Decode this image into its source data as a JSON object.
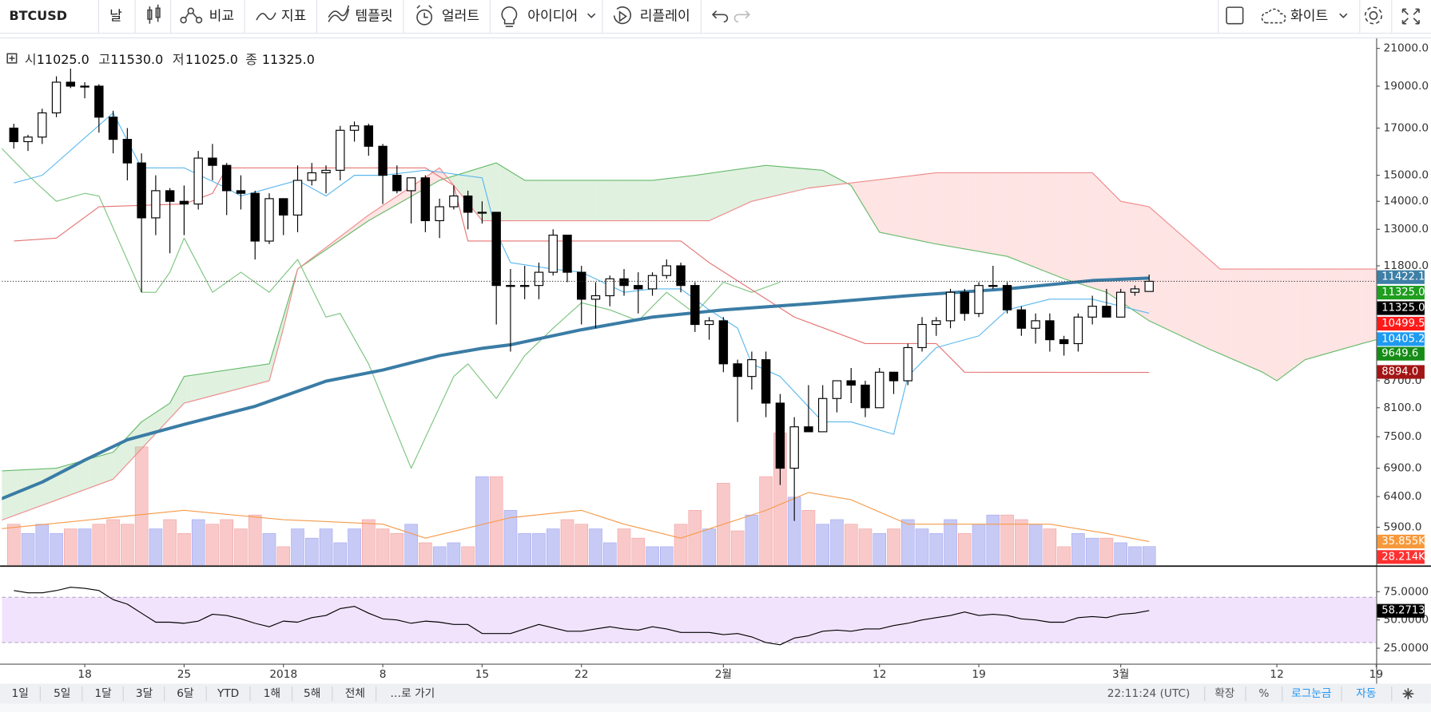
{
  "toolbar": {
    "symbol": "BTCUSD",
    "interval": "날",
    "buttons": [
      "비교",
      "지표",
      "템플릿",
      "얼러트",
      "아이디어",
      "리플레이"
    ],
    "theme": "화이트"
  },
  "legend": [
    {
      "label": "시",
      "value": "11025.0"
    },
    {
      "label": "고",
      "value": "11530.0"
    },
    {
      "label": "저",
      "value": "11025.0"
    },
    {
      "label": "종",
      "value": "11325.0"
    }
  ],
  "price_labels": [
    {
      "text": "11422.1",
      "color": "#3d7fa6"
    },
    {
      "text": "11325.0",
      "color": "#1f9e1f"
    },
    {
      "text": "11325.0",
      "color": "#000000"
    },
    {
      "text": "10499.5",
      "color": "#ff1a1a"
    },
    {
      "text": "10405.2",
      "color": "#1e9bf0"
    },
    {
      "text": "9649.6",
      "color": "#168c16"
    },
    {
      "text": "8894.0",
      "color": "#a31515"
    },
    {
      "text": "35.855K",
      "color": "#f7993a"
    },
    {
      "text": "28.214K",
      "color": "#ff3030"
    },
    {
      "text": "58.2713",
      "color": "#000000"
    }
  ],
  "bottom_bar": {
    "ranges": [
      "1일",
      "5일",
      "1달",
      "3달",
      "6달",
      "YTD",
      "1해",
      "5해",
      "전체"
    ],
    "goto": "…로 가기",
    "time": "22:11:24 (UTC)",
    "options": [
      "확장",
      "%",
      "로그눈금",
      "자동"
    ]
  },
  "chart_data": {
    "type": "candlestick",
    "log_scale": true,
    "up_color": "#ffffff",
    "down_color": "#000000",
    "xlim": [
      -0.84,
      96
    ],
    "xticks": [
      {
        "value": 5,
        "label": "18"
      },
      {
        "value": 12,
        "label": "25"
      },
      {
        "value": 19,
        "label": "2018"
      },
      {
        "value": 26,
        "label": "8"
      },
      {
        "value": 33,
        "label": "15"
      },
      {
        "value": 40,
        "label": "22"
      },
      {
        "value": 50,
        "label": "2월"
      },
      {
        "value": 61,
        "label": "12"
      },
      {
        "value": 68,
        "label": "19"
      },
      {
        "value": 78,
        "label": "3월"
      },
      {
        "value": 89,
        "label": "12"
      },
      {
        "value": 96,
        "label": "19"
      }
    ],
    "ylim": [
      5335,
      21570
    ],
    "yticks": [
      {
        "value": 21000,
        "label": "21000.0"
      },
      {
        "value": 19000,
        "label": "19000.0"
      },
      {
        "value": 17000,
        "label": "17000.0"
      },
      {
        "value": 15000,
        "label": "15000.0"
      },
      {
        "value": 14000,
        "label": "14000.0"
      },
      {
        "value": 13000,
        "label": "13000.0"
      },
      {
        "value": 11800,
        "label": "11800.0"
      },
      {
        "value": 8700,
        "label": "8700.0"
      },
      {
        "value": 8100,
        "label": "8100.0"
      },
      {
        "value": 7500,
        "label": "7500.0"
      },
      {
        "value": 6900,
        "label": "6900.0"
      },
      {
        "value": 6400,
        "label": "6400.0"
      },
      {
        "value": 5900,
        "label": "5900.0"
      }
    ],
    "candles": [
      [
        17000,
        17200,
        16100,
        16400
      ],
      [
        16400,
        16700,
        16000,
        16600
      ],
      [
        16600,
        17900,
        16300,
        17700
      ],
      [
        17700,
        19500,
        17500,
        19200
      ],
      [
        19200,
        19900,
        18900,
        19000
      ],
      [
        19000,
        19200,
        18400,
        19000
      ],
      [
        19000,
        19100,
        16800,
        17500
      ],
      [
        17500,
        17800,
        15900,
        16500
      ],
      [
        16500,
        17000,
        14800,
        15500
      ],
      [
        15500,
        15900,
        11000,
        13400
      ],
      [
        13400,
        15000,
        12800,
        14400
      ],
      [
        14400,
        14500,
        12200,
        14000
      ],
      [
        14000,
        14600,
        12800,
        13900
      ],
      [
        13900,
        16000,
        13700,
        15700
      ],
      [
        15700,
        16300,
        14800,
        15400
      ],
      [
        15400,
        15500,
        13500,
        14400
      ],
      [
        14400,
        15000,
        13700,
        14300
      ],
      [
        14300,
        14400,
        12000,
        12600
      ],
      [
        12600,
        14300,
        12500,
        14100
      ],
      [
        14100,
        14100,
        12800,
        13500
      ],
      [
        13500,
        15400,
        12900,
        14800
      ],
      [
        14800,
        15500,
        14600,
        15100
      ],
      [
        15100,
        15400,
        14300,
        15200
      ],
      [
        15200,
        17100,
        14800,
        16900
      ],
      [
        16900,
        17300,
        16400,
        17100
      ],
      [
        17100,
        17200,
        15800,
        16200
      ],
      [
        16200,
        16300,
        13900,
        15000
      ],
      [
        15000,
        15400,
        14300,
        14400
      ],
      [
        14400,
        14900,
        13200,
        14900
      ],
      [
        14900,
        15000,
        12900,
        13300
      ],
      [
        13300,
        14100,
        12700,
        13800
      ],
      [
        13800,
        14600,
        13700,
        14200
      ],
      [
        14200,
        14400,
        13000,
        13600
      ],
      [
        13600,
        14000,
        13200,
        13600
      ],
      [
        13600,
        13600,
        10100,
        11200
      ],
      [
        11200,
        11700,
        9400,
        11200
      ],
      [
        11200,
        11800,
        10800,
        11200
      ],
      [
        11200,
        11900,
        10800,
        11600
      ],
      [
        11600,
        13000,
        11500,
        12800
      ],
      [
        12800,
        12800,
        11300,
        11600
      ],
      [
        11600,
        11800,
        10100,
        10800
      ],
      [
        10800,
        11300,
        10000,
        10900
      ],
      [
        10900,
        11500,
        10600,
        11400
      ],
      [
        11400,
        11700,
        10900,
        11200
      ],
      [
        11200,
        11600,
        10400,
        11100
      ],
      [
        11100,
        11600,
        10900,
        11500
      ],
      [
        11500,
        12000,
        11400,
        11800
      ],
      [
        11800,
        11900,
        11000,
        11200
      ],
      [
        11200,
        11300,
        9900,
        10100
      ],
      [
        10100,
        10300,
        9700,
        10200
      ],
      [
        10200,
        10300,
        8900,
        9100
      ],
      [
        9100,
        9200,
        7800,
        8800
      ],
      [
        8800,
        9400,
        8500,
        9200
      ],
      [
        9200,
        9400,
        7900,
        8200
      ],
      [
        8200,
        8400,
        6600,
        6900
      ],
      [
        6900,
        7900,
        6000,
        7700
      ],
      [
        7700,
        8600,
        7600,
        7600
      ],
      [
        7600,
        8600,
        7600,
        8300
      ],
      [
        8300,
        8700,
        8000,
        8700
      ],
      [
        8700,
        9000,
        8200,
        8600
      ],
      [
        8600,
        8700,
        7900,
        8100
      ],
      [
        8100,
        9000,
        8100,
        8900
      ],
      [
        8900,
        8900,
        8400,
        8700
      ],
      [
        8700,
        9600,
        8600,
        9500
      ],
      [
        9500,
        10300,
        9400,
        10100
      ],
      [
        10100,
        10300,
        9800,
        10200
      ],
      [
        10200,
        11100,
        10000,
        11000
      ],
      [
        11000,
        11100,
        10200,
        10400
      ],
      [
        10400,
        11300,
        10300,
        11200
      ],
      [
        11200,
        11800,
        11100,
        11200
      ],
      [
        11200,
        11300,
        10400,
        10500
      ],
      [
        10500,
        10600,
        9800,
        10000
      ],
      [
        10000,
        10400,
        9600,
        10200
      ],
      [
        10200,
        10400,
        9400,
        9700
      ],
      [
        9700,
        9800,
        9300,
        9600
      ],
      [
        9600,
        10400,
        9400,
        10300
      ],
      [
        10300,
        10900,
        10100,
        10600
      ],
      [
        10600,
        11100,
        10300,
        10300
      ],
      [
        10300,
        11100,
        10300,
        11000
      ],
      [
        11000,
        11200,
        10900,
        11100
      ],
      [
        11025,
        11530,
        11025,
        11325
      ]
    ],
    "lines": {
      "ma": {
        "color": "#3a7ca5",
        "width": 3.5,
        "x": [
          -1,
          2,
          5,
          8,
          12,
          17,
          22,
          26,
          30,
          33,
          35,
          40,
          45,
          50,
          57,
          63,
          70,
          76,
          80
        ],
        "values": [
          6350,
          6650,
          7050,
          7440,
          7750,
          8130,
          8690,
          8950,
          9300,
          9480,
          9570,
          9960,
          10300,
          10500,
          10700,
          10900,
          11100,
          11350,
          11422.1
        ]
      },
      "tenkan": {
        "color": "#5ab8ee",
        "width": 1,
        "x": [
          0,
          2,
          7,
          9,
          12,
          15,
          16,
          20,
          22,
          24,
          26,
          29,
          33,
          34,
          35,
          38,
          40,
          43,
          45,
          47,
          49,
          51,
          52,
          54,
          57,
          59,
          62,
          63,
          65,
          68,
          70,
          73,
          76,
          80
        ],
        "values": [
          14700,
          15000,
          17700,
          15300,
          15300,
          14500,
          14200,
          14800,
          14200,
          15000,
          15000,
          15200,
          14900,
          12900,
          11900,
          11700,
          11600,
          11000,
          11100,
          11100,
          10500,
          10000,
          9100,
          8800,
          7800,
          7800,
          7550,
          8800,
          9500,
          9800,
          10500,
          10800,
          10800,
          10405.2
        ]
      },
      "kijun": {
        "color": "#e57373",
        "width": 1,
        "x": [
          0,
          3,
          6,
          12,
          14,
          15,
          29,
          31,
          32,
          47,
          49,
          55,
          60,
          65,
          67,
          80
        ],
        "values": [
          12600,
          12700,
          13800,
          13900,
          14300,
          15300,
          15300,
          14600,
          12600,
          12600,
          11900,
          10300,
          9600,
          9600,
          8900,
          8894
        ]
      },
      "span_a": {
        "color": "#66bb6a",
        "width": 1,
        "x": [
          -1,
          3,
          7,
          9,
          11,
          12,
          18,
          20,
          25,
          30,
          34,
          36,
          40,
          45,
          48,
          53,
          57,
          59,
          61,
          65,
          70,
          74,
          77,
          80,
          84,
          88,
          89,
          91,
          95,
          96
        ],
        "values": [
          6850,
          6900,
          7200,
          7800,
          8200,
          8800,
          9100,
          11700,
          13300,
          14800,
          15500,
          14800,
          14800,
          14800,
          15000,
          15400,
          15200,
          14600,
          12900,
          12500,
          12100,
          11400,
          11000,
          10200,
          9500,
          8900,
          8700,
          9200,
          9600,
          9700
        ]
      },
      "span_b": {
        "color": "#ef8a8a",
        "width": 1,
        "x": [
          -1,
          7,
          12,
          18,
          19,
          20,
          25,
          30,
          33,
          49,
          52,
          56,
          59,
          65,
          76,
          78,
          80,
          83,
          85,
          96
        ],
        "values": [
          6000,
          6700,
          8200,
          8700,
          10000,
          11700,
          13500,
          15300,
          13300,
          13300,
          14000,
          14500,
          14700,
          15100,
          15100,
          14000,
          13800,
          12500,
          11700,
          11700
        ]
      },
      "chikou": {
        "color": "#7cc47f",
        "width": 1,
        "x": [
          -1,
          1,
          3,
          5,
          6,
          9,
          10,
          11,
          12,
          14,
          16,
          18,
          20,
          22,
          23,
          25,
          28,
          31,
          32,
          34,
          36,
          38,
          40,
          42,
          44,
          46,
          48,
          50,
          52,
          54
        ],
        "values": [
          16200,
          15000,
          14000,
          14300,
          14200,
          11000,
          11000,
          11600,
          12700,
          11000,
          11600,
          11000,
          12000,
          10300,
          10400,
          9100,
          6900,
          8800,
          9100,
          8300,
          9300,
          10000,
          10700,
          10500,
          10200,
          11000,
          10400,
          11300,
          11000,
          11300
        ]
      }
    },
    "volume": {
      "ylim": [
        0,
        797000
      ],
      "up_color": "#b9bdf3",
      "down_color": "#f7bcbc",
      "ma_color": "#f59a4a",
      "values": [
        62000,
        48000,
        62000,
        48000,
        55000,
        55000,
        62000,
        69000,
        62000,
        179000,
        55000,
        69000,
        48000,
        69000,
        62000,
        69000,
        55000,
        76000,
        48000,
        28000,
        55000,
        41000,
        55000,
        34000,
        55000,
        69000,
        55000,
        48000,
        62000,
        34000,
        28000,
        34000,
        28000,
        134000,
        134000,
        83000,
        48000,
        48000,
        55000,
        69000,
        62000,
        55000,
        34000,
        55000,
        41000,
        28000,
        28000,
        62000,
        83000,
        55000,
        124000,
        52000,
        76000,
        134000,
        200000,
        103000,
        83000,
        62000,
        69000,
        62000,
        55000,
        48000,
        55000,
        69000,
        55000,
        48000,
        69000,
        48000,
        62000,
        76000,
        76000,
        69000,
        62000,
        55000,
        28000,
        48000,
        41000,
        41000,
        34000,
        28000,
        28214
      ],
      "ma": {
        "x": [
          -1,
          12,
          19,
          26,
          29,
          35,
          40,
          43,
          47,
          53,
          56,
          59,
          63,
          69,
          73,
          77,
          80
        ],
        "values": [
          55000,
          83000,
          69000,
          62000,
          41000,
          72000,
          83000,
          62000,
          41000,
          83000,
          110000,
          99000,
          62000,
          62000,
          62000,
          48000,
          35855
        ]
      }
    },
    "rsi": {
      "ylim": [
        11.3,
        96.8
      ],
      "band": [
        30,
        70
      ],
      "yticks": [
        {
          "value": 75,
          "label": "75.0000"
        },
        {
          "value": 50,
          "label": "50.0000"
        },
        {
          "value": 25,
          "label": "25.0000"
        }
      ],
      "values": [
        76,
        74,
        74,
        76,
        79,
        78,
        76,
        68,
        64,
        56,
        48,
        48,
        47,
        49,
        55,
        54,
        51,
        47,
        44,
        49,
        48,
        52,
        54,
        60,
        62,
        56,
        51,
        50,
        47,
        49,
        48,
        46,
        46,
        38,
        38,
        38,
        42,
        46,
        43,
        40,
        40,
        42,
        44,
        42,
        41,
        44,
        42,
        39,
        39,
        39,
        37,
        38,
        35,
        30,
        28,
        34,
        36,
        40,
        41,
        40,
        42,
        42,
        45,
        47,
        50,
        52,
        54,
        57,
        54,
        55,
        54,
        51,
        50,
        48,
        48,
        52,
        53,
        52,
        55,
        56,
        58.2713
      ]
    }
  }
}
